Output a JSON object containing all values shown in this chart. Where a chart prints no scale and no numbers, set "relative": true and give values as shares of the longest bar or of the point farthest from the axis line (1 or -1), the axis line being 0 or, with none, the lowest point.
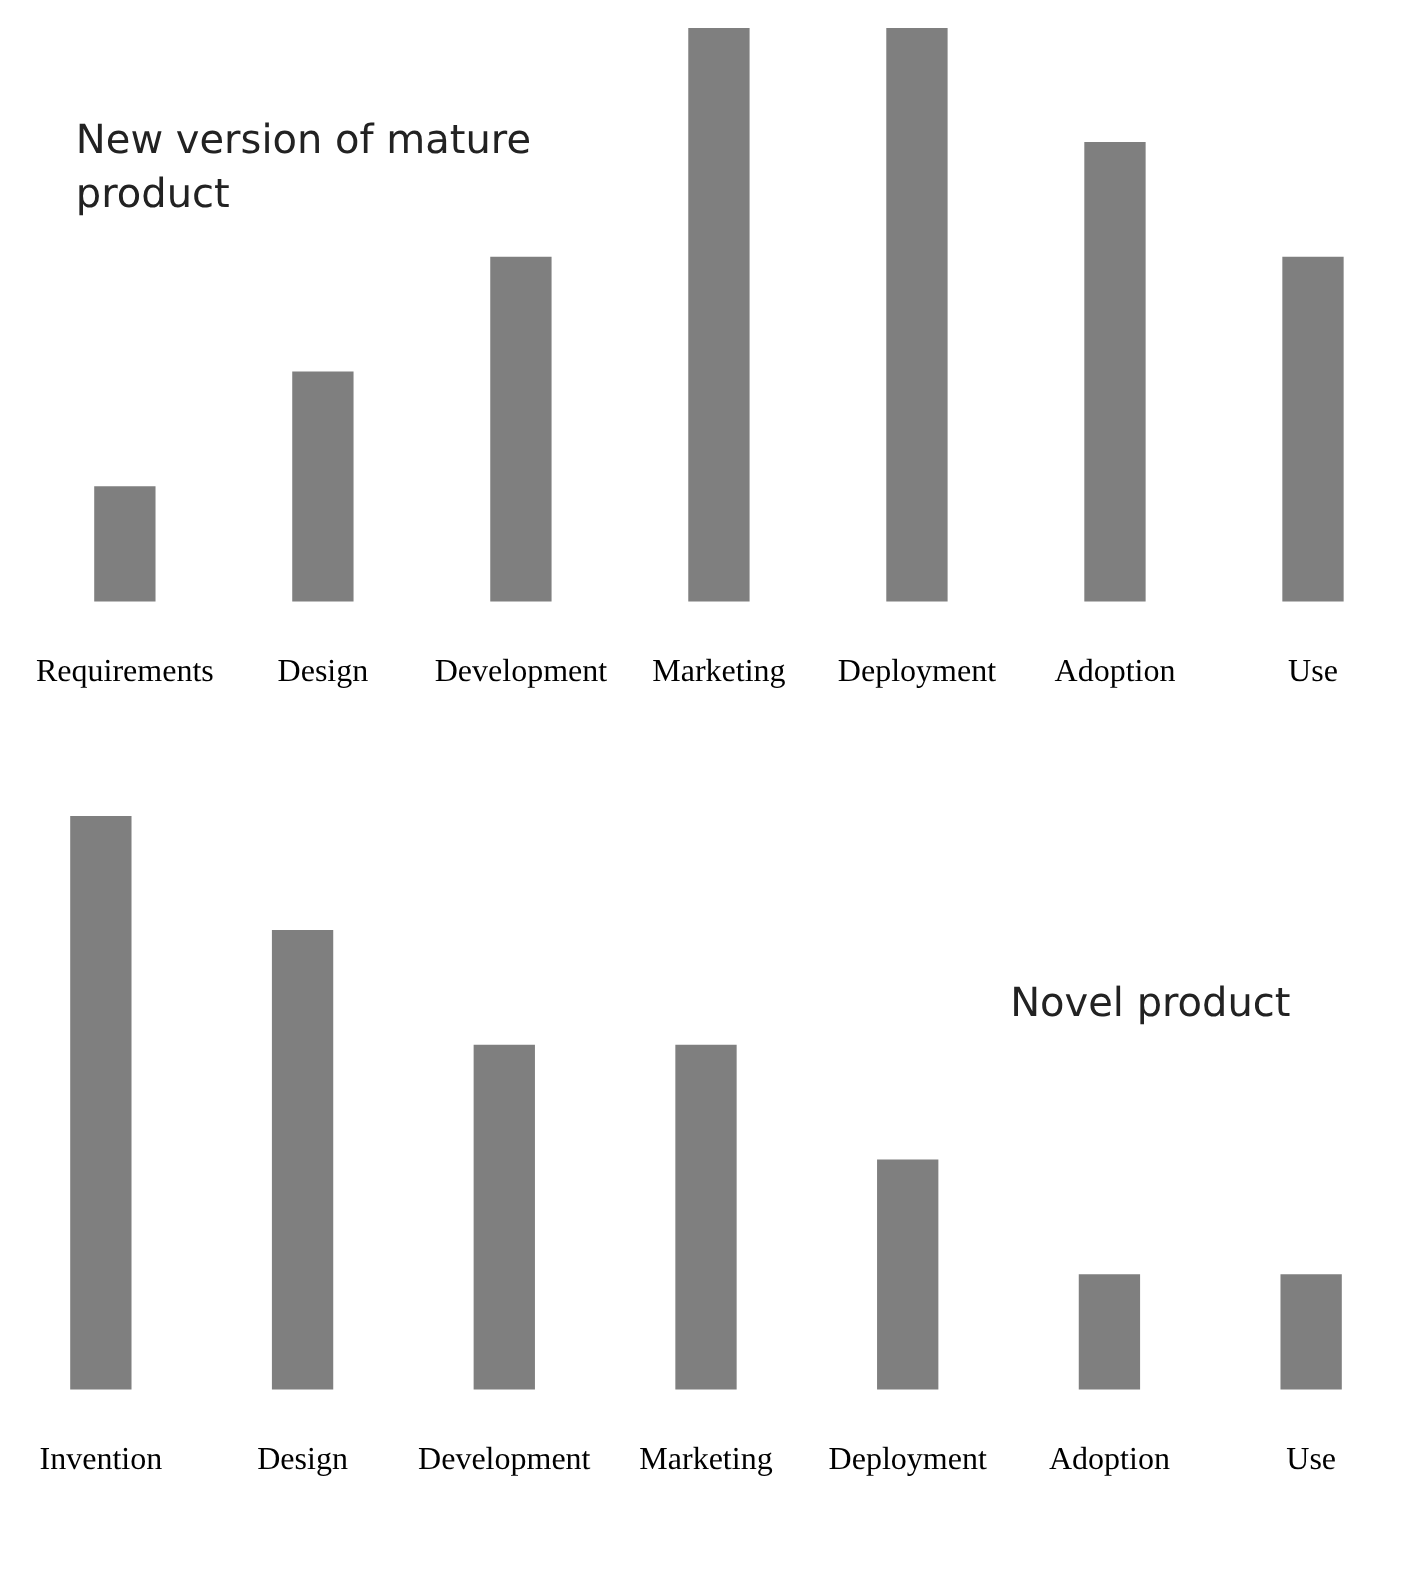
{
  "chart_data": [
    {
      "type": "bar",
      "relative": true,
      "categories": [
        "Requirements",
        "Design",
        "Development",
        "Marketing",
        "Deployment",
        "Adoption",
        "Use"
      ],
      "values": [
        0.2,
        0.4,
        0.6,
        1,
        1,
        0.8,
        0.6
      ],
      "color": "#7f7f7f",
      "annotations": [
        "New version of mature product"
      ],
      "grid": false,
      "legend": false
    },
    {
      "type": "bar",
      "relative": true,
      "categories": [
        "Invention",
        "Design",
        "Development",
        "Marketing",
        "Deployment",
        "Adoption",
        "Use"
      ],
      "values": [
        1,
        0.8,
        0.6,
        0.6,
        0.4,
        0.2,
        0.2
      ],
      "color": "#7f7f7f",
      "annotations": [
        "Novel product"
      ],
      "grid": false,
      "legend": false
    }
  ]
}
